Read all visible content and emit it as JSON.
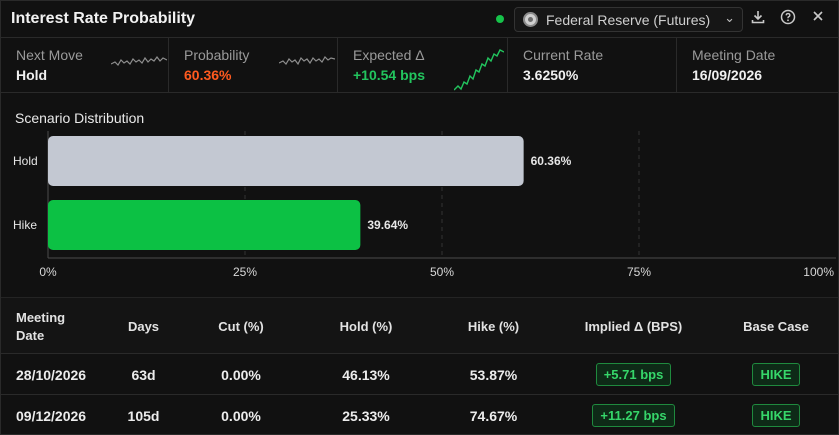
{
  "header": {
    "title": "Interest Rate Probability",
    "source": "Federal Reserve (Futures)",
    "icons": [
      "live-status-dot",
      "fed-seal-icon",
      "chevron-down-icon",
      "download-icon",
      "help-icon",
      "close-icon"
    ]
  },
  "stats": [
    {
      "label": "Next Move",
      "value": "Hold"
    },
    {
      "label": "Probability",
      "value": "60.36%"
    },
    {
      "label": "Expected Δ",
      "value": "+10.54 bps"
    },
    {
      "label": "Current Rate",
      "value": "3.6250%"
    },
    {
      "label": "Meeting Date",
      "value": "16/09/2026"
    }
  ],
  "colors": {
    "probability": "#ff5a1f",
    "expected": "#22c55e",
    "hold_bar": "#c3c8d2",
    "hike_bar": "#0cc144",
    "accent_green": "#36d66a"
  },
  "chart_title": "Scenario Distribution",
  "chart_data": {
    "type": "bar",
    "orientation": "horizontal",
    "categories": [
      "Hold",
      "Hike"
    ],
    "values": [
      60.36,
      39.64
    ],
    "value_labels": [
      "60.36%",
      "39.64%"
    ],
    "xlim": [
      0,
      100
    ],
    "xticks": [
      "0%",
      "25%",
      "50%",
      "75%",
      "100%"
    ],
    "grid": "vertical dashed"
  },
  "table": {
    "headers": [
      "Meeting Date",
      "Days",
      "Cut (%)",
      "Hold (%)",
      "Hike (%)",
      "Implied Δ (BPS)",
      "Base Case"
    ],
    "rows": [
      [
        "28/10/2026",
        "63d",
        "0.00%",
        "46.13%",
        "53.87%",
        "+5.71 bps",
        "HIKE"
      ],
      [
        "09/12/2026",
        "105d",
        "0.00%",
        "25.33%",
        "74.67%",
        "+11.27 bps",
        "HIKE"
      ]
    ]
  }
}
